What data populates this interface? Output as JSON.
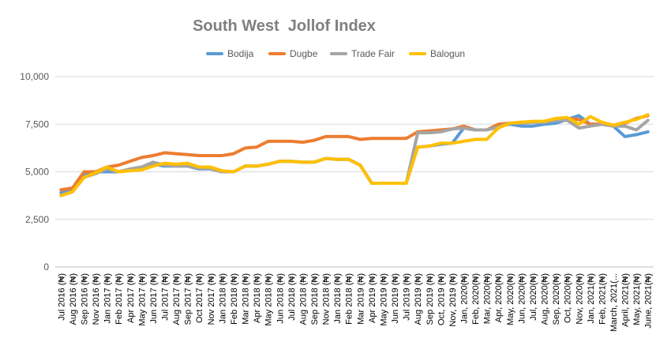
{
  "chart_data": {
    "type": "line",
    "title": "South West  Jollof Index",
    "xlabel": "",
    "ylabel": "",
    "ylim": [
      0,
      10000
    ],
    "yticks": [
      "0",
      "2,500",
      "5,000",
      "7,500",
      "10,000"
    ],
    "ytick_values": [
      0,
      2500,
      5000,
      7500,
      10000
    ],
    "grid": true,
    "legend_position": "top",
    "categories": [
      "Jul 2016 (₦)",
      "Aug 2016 (₦)",
      "Sep 2016 (₦)",
      "Nov 2016 (₦)",
      "Jan 2017 (₦)",
      "Feb 2017 (₦)",
      "Apr 2017 (₦)",
      "May 2017 (₦)",
      "Jun 2017 (₦)",
      "Jul 2017 (₦)",
      "Aug 2017 (₦)",
      "Sep 2017 (₦)",
      "Oct 2017 (₦)",
      "Nov 2017 (₦)",
      "Jan 2018 (₦)",
      "Feb 2018 (₦)",
      "Mar 2018 (₦)",
      "Apr 2018 (₦)",
      "May 2018 (₦)",
      "Jun 2018 (₦)",
      "Jul 2018 (₦)",
      "Aug 2018 (₦)",
      "Sep 2018 (₦)",
      "Nov 2018 (₦)",
      "Jan 2018 (₦)",
      "Feb 2018 (₦)",
      "Mar 2019 (₦)",
      "Apr 2019 (₦)",
      "May 2019 (₦)",
      "Jun 2019 (₦)",
      "Jul 2019 (₦)",
      "Aug 2019 (₦)",
      "Sep 2019 (₦)",
      "Oct, 2019 (₦)",
      "Nov, 2019 (₦)",
      "Jan, 2020(₦)",
      "Feb, 2020(₦)",
      "Mar, 2020(₦)",
      "Apr, 2020(₦)",
      "May, 2020(₦)",
      "Jun, 2020(₦)",
      "Jul, 2020(₦)",
      "Aug, 2020(₦)",
      "Sep, 2020(₦)",
      "Oct, 2020(₦)",
      "Nov, 2020(₦)",
      "Jan, 2021(₦)",
      "Feb, 2021(₦)",
      "March, 2021(...",
      "April, 2021(₦)",
      "May, 2021(₦)",
      "June, 2021(₦)"
    ],
    "series": [
      {
        "name": "Bodija",
        "color": "#5b9bd5",
        "values": [
          3900,
          4100,
          4900,
          5000,
          5000,
          5000,
          5100,
          5150,
          5400,
          5300,
          5300,
          5300,
          5150,
          5150,
          5000,
          5000,
          5300,
          5300,
          5400,
          5550,
          5550,
          5500,
          5500,
          5700,
          5650,
          5650,
          5350,
          4400,
          4400,
          4400,
          4400,
          6300,
          6350,
          6450,
          6500,
          7300,
          7200,
          7200,
          7400,
          7500,
          7400,
          7400,
          7500,
          7550,
          7750,
          7950,
          7500,
          7500,
          7400,
          6850,
          6950,
          7100
        ]
      },
      {
        "name": "Dugbe",
        "color": "#ed7d31",
        "values": [
          4050,
          4150,
          5000,
          5000,
          5250,
          5350,
          5550,
          5750,
          5850,
          6000,
          5950,
          5900,
          5850,
          5850,
          5850,
          5950,
          6250,
          6300,
          6600,
          6600,
          6600,
          6550,
          6650,
          6850,
          6850,
          6850,
          6700,
          6750,
          6750,
          6750,
          6750,
          7100,
          7150,
          7200,
          7250,
          7400,
          7200,
          7200,
          7500,
          7550,
          7600,
          7600,
          7650,
          7750,
          7800,
          7750,
          7500,
          7500,
          7400,
          7550,
          7800,
          7950
        ]
      },
      {
        "name": "Trade Fair",
        "color": "#a5a5a5",
        "values": [
          3750,
          3950,
          4700,
          4900,
          5150,
          5000,
          5150,
          5250,
          5500,
          5350,
          5300,
          5300,
          5200,
          5150,
          5000,
          5000,
          5300,
          5300,
          5400,
          5550,
          5550,
          5500,
          5500,
          5700,
          5650,
          5650,
          5350,
          4400,
          4400,
          4400,
          4400,
          7050,
          7050,
          7100,
          7250,
          7300,
          7200,
          7200,
          7350,
          7550,
          7550,
          7600,
          7600,
          7700,
          7700,
          7300,
          7400,
          7500,
          7400,
          7400,
          7200,
          7700
        ]
      },
      {
        "name": "Balogun",
        "color": "#ffc000",
        "values": [
          3750,
          3950,
          4700,
          4950,
          5250,
          5000,
          5050,
          5100,
          5300,
          5450,
          5400,
          5450,
          5250,
          5250,
          5050,
          5000,
          5300,
          5300,
          5400,
          5550,
          5550,
          5500,
          5500,
          5700,
          5650,
          5650,
          5350,
          4400,
          4400,
          4400,
          4400,
          6300,
          6350,
          6500,
          6500,
          6600,
          6700,
          6700,
          7300,
          7550,
          7600,
          7650,
          7650,
          7800,
          7850,
          7500,
          7900,
          7600,
          7450,
          7600,
          7750,
          8000
        ]
      }
    ]
  }
}
